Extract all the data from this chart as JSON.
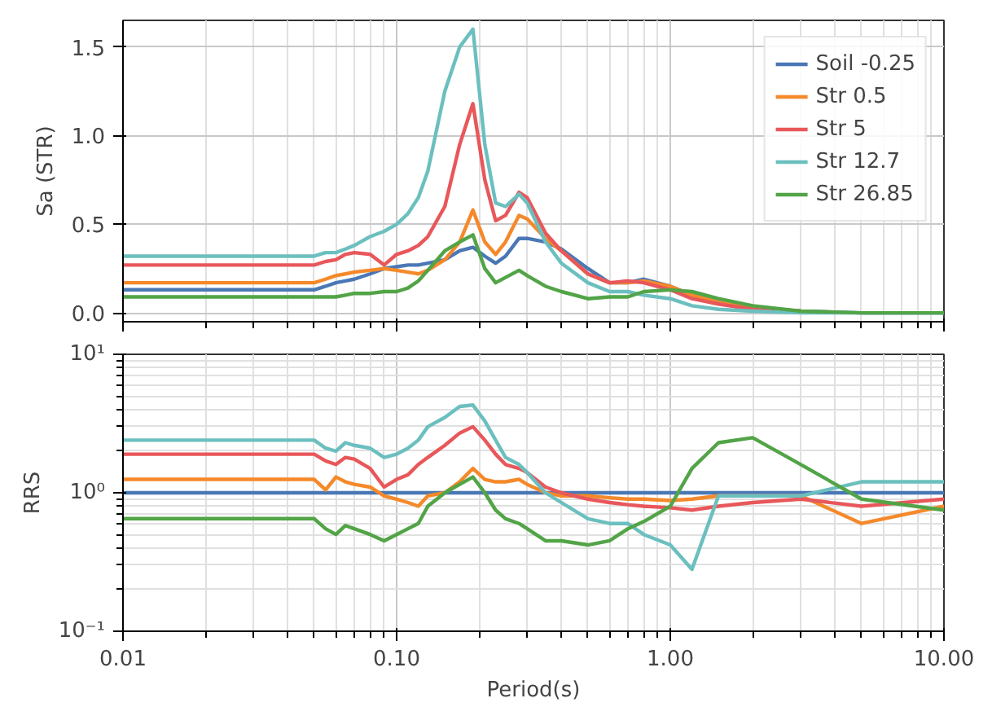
{
  "chart_data": [
    {
      "type": "line",
      "ylabel": "Sa (STR)",
      "log": "x",
      "xlim": [
        0.01,
        10
      ],
      "xticks": [
        0.01,
        0.1,
        1,
        10
      ],
      "ylim": [
        -0.05,
        1.65
      ],
      "yticks": [
        {
          "value": 0,
          "label": "0.0"
        },
        {
          "value": 0.5,
          "label": "0.5"
        },
        {
          "value": 1,
          "label": "1.0"
        },
        {
          "value": 1.5,
          "label": "1.5"
        }
      ],
      "tick_labels": "y",
      "grid": true,
      "legend": "top right",
      "x": [
        0.01,
        0.05,
        0.055,
        0.06,
        0.065,
        0.07,
        0.08,
        0.09,
        0.1,
        0.11,
        0.12,
        0.13,
        0.15,
        0.17,
        0.19,
        0.21,
        0.23,
        0.25,
        0.28,
        0.3,
        0.35,
        0.4,
        0.5,
        0.6,
        0.7,
        0.8,
        1.0,
        1.2,
        1.5,
        2,
        3,
        5,
        10
      ],
      "series": [
        {
          "name": "Soil -0.25",
          "color": "#4a78b5",
          "values": [
            0.13,
            0.13,
            0.15,
            0.17,
            0.18,
            0.19,
            0.22,
            0.25,
            0.26,
            0.27,
            0.27,
            0.28,
            0.3,
            0.35,
            0.37,
            0.32,
            0.28,
            0.32,
            0.42,
            0.42,
            0.4,
            0.36,
            0.25,
            0.17,
            0.17,
            0.19,
            0.15,
            0.1,
            0.06,
            0.03,
            0.01,
            0.0,
            0.0
          ]
        },
        {
          "name": "Str 0.5",
          "color": "#f5892a",
          "values": [
            0.17,
            0.17,
            0.19,
            0.21,
            0.22,
            0.23,
            0.24,
            0.25,
            0.24,
            0.23,
            0.22,
            0.24,
            0.3,
            0.4,
            0.58,
            0.4,
            0.33,
            0.4,
            0.55,
            0.53,
            0.42,
            0.35,
            0.22,
            0.17,
            0.17,
            0.18,
            0.15,
            0.1,
            0.06,
            0.03,
            0.01,
            null,
            null
          ]
        },
        {
          "name": "Str 5",
          "color": "#e8575a",
          "values": [
            0.27,
            0.27,
            0.29,
            0.3,
            0.33,
            0.34,
            0.33,
            0.27,
            0.33,
            0.35,
            0.38,
            0.43,
            0.6,
            0.95,
            1.18,
            0.75,
            0.52,
            0.55,
            0.68,
            0.65,
            0.45,
            0.35,
            0.22,
            0.17,
            0.18,
            0.17,
            0.13,
            0.08,
            0.05,
            0.02,
            0.01,
            null,
            null
          ]
        },
        {
          "name": "Str 12.7",
          "color": "#6cbfbf",
          "values": [
            0.32,
            0.32,
            0.34,
            0.34,
            0.36,
            0.38,
            0.43,
            0.46,
            0.5,
            0.56,
            0.65,
            0.8,
            1.25,
            1.5,
            1.6,
            0.95,
            0.62,
            0.6,
            0.67,
            0.62,
            0.4,
            0.28,
            0.17,
            0.12,
            0.12,
            0.1,
            0.08,
            0.04,
            0.02,
            0.01,
            0.0,
            0.0,
            0.0
          ]
        },
        {
          "name": "Str 26.85",
          "color": "#52a447",
          "values": [
            0.09,
            0.09,
            0.09,
            0.09,
            0.1,
            0.11,
            0.11,
            0.12,
            0.12,
            0.14,
            0.18,
            0.24,
            0.35,
            0.4,
            0.44,
            0.25,
            0.17,
            0.2,
            0.24,
            0.21,
            0.15,
            0.12,
            0.08,
            0.09,
            0.09,
            0.12,
            0.13,
            0.12,
            0.08,
            0.04,
            0.01,
            0.0,
            0.0
          ]
        }
      ]
    },
    {
      "type": "line",
      "ylabel": "RRS",
      "xlabel": "Period(s)",
      "log": "xy",
      "xlim": [
        0.01,
        10
      ],
      "xticks": [
        {
          "value": 0.01,
          "label": "0.01"
        },
        {
          "value": 0.1,
          "label": "0.10"
        },
        {
          "value": 1,
          "label": "1.00"
        },
        {
          "value": 10,
          "label": "10.00"
        }
      ],
      "ylim": [
        0.1,
        10
      ],
      "yticks": [
        {
          "value": 0.1,
          "label": "10⁻¹"
        },
        {
          "value": 1,
          "label": "10⁰"
        },
        {
          "value": 10,
          "label": "10¹"
        }
      ],
      "grid": true,
      "x": [
        0.01,
        0.05,
        0.055,
        0.06,
        0.065,
        0.07,
        0.08,
        0.09,
        0.1,
        0.11,
        0.12,
        0.13,
        0.15,
        0.17,
        0.19,
        0.21,
        0.23,
        0.25,
        0.28,
        0.3,
        0.35,
        0.4,
        0.5,
        0.6,
        0.7,
        0.8,
        1.0,
        1.2,
        1.5,
        2,
        3,
        5,
        10
      ],
      "series": [
        {
          "color": "#4a78b5",
          "values": [
            1,
            1,
            1,
            1,
            1,
            1,
            1,
            1,
            1,
            1,
            1,
            1,
            1,
            1,
            1,
            1,
            1,
            1,
            1,
            1,
            1,
            1,
            1,
            1,
            1,
            1,
            1,
            1,
            1,
            1,
            1,
            1,
            1
          ]
        },
        {
          "color": "#f5892a",
          "values": [
            1.25,
            1.25,
            1.05,
            1.3,
            1.2,
            1.15,
            1.1,
            0.95,
            0.9,
            0.85,
            0.8,
            0.95,
            1.0,
            1.2,
            1.5,
            1.25,
            1.2,
            1.2,
            1.25,
            1.15,
            1.0,
            0.95,
            0.95,
            0.92,
            0.9,
            0.9,
            0.88,
            0.9,
            0.95,
            0.95,
            0.95,
            0.6,
            0.8
          ]
        },
        {
          "color": "#e8575a",
          "values": [
            1.9,
            1.9,
            1.7,
            1.6,
            1.8,
            1.75,
            1.5,
            1.1,
            1.25,
            1.35,
            1.6,
            1.8,
            2.2,
            2.7,
            3.0,
            2.4,
            1.9,
            1.6,
            1.5,
            1.4,
            1.1,
            1.0,
            0.9,
            0.85,
            0.82,
            0.8,
            0.78,
            0.75,
            0.8,
            0.85,
            0.9,
            0.8,
            0.9
          ]
        },
        {
          "color": "#6cbfbf",
          "values": [
            2.4,
            2.4,
            2.1,
            2.0,
            2.3,
            2.2,
            2.1,
            1.8,
            1.9,
            2.1,
            2.4,
            3.0,
            3.5,
            4.2,
            4.3,
            3.3,
            2.4,
            1.8,
            1.6,
            1.4,
            1.0,
            0.85,
            0.65,
            0.6,
            0.6,
            0.5,
            0.42,
            0.28,
            0.95,
            0.95,
            0.95,
            1.2,
            1.2
          ]
        },
        {
          "color": "#52a447",
          "values": [
            0.65,
            0.65,
            0.55,
            0.5,
            0.58,
            0.55,
            0.5,
            0.45,
            0.5,
            0.55,
            0.6,
            0.8,
            1.0,
            1.15,
            1.3,
            1.0,
            0.75,
            0.65,
            0.6,
            0.55,
            0.45,
            0.45,
            0.42,
            0.45,
            0.55,
            0.62,
            0.8,
            1.5,
            2.3,
            2.5,
            1.6,
            0.9,
            0.75
          ]
        }
      ]
    }
  ]
}
